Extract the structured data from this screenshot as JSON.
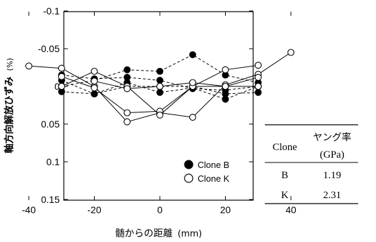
{
  "chart_data": {
    "type": "scatter",
    "xlabel": "髄からの距離",
    "xlabel_unit": "(mm)",
    "ylabel": "軸方向解放ひずみ",
    "ylabel_unit": "(%)",
    "xlim": [
      -45,
      45
    ],
    "ylim": [
      -0.1,
      0.15
    ],
    "y_inverted": true,
    "x_ticks": [
      -40,
      -20,
      0,
      20,
      40
    ],
    "y_ticks": [
      -0.1,
      -0.05,
      0,
      0.05,
      0.1,
      0.15
    ],
    "y_tick_labels": [
      "-0.1",
      "-0.05",
      "0",
      "0.05",
      "0.1",
      "0.15"
    ],
    "x_tick_labels": [
      "-40",
      "-20",
      "0",
      "20",
      "40"
    ],
    "grid": false,
    "legend_position": "bottom-right",
    "series": [
      {
        "name": "Clone B",
        "marker": "filled-circle",
        "style": "dashed",
        "lines": [
          [
            [
              -30,
              -0.008
            ],
            [
              -20,
              0.01
            ],
            [
              -10,
              -0.005
            ],
            [
              0,
              0.008
            ],
            [
              10,
              0.002
            ],
            [
              20,
              0.017
            ],
            [
              30,
              0.0
            ]
          ],
          [
            [
              -30,
              0.0
            ],
            [
              -20,
              -0.008
            ],
            [
              -10,
              -0.022
            ],
            [
              0,
              -0.02
            ],
            [
              10,
              -0.042
            ],
            [
              20,
              -0.015
            ],
            [
              30,
              -0.005
            ]
          ],
          [
            [
              -30,
              0.007
            ],
            [
              -20,
              0.01
            ],
            [
              -10,
              0.0
            ],
            [
              0,
              0.0
            ],
            [
              10,
              0.0
            ],
            [
              20,
              0.01
            ],
            [
              30,
              0.008
            ]
          ],
          [
            [
              -30,
              -0.015
            ],
            [
              -20,
              -0.01
            ],
            [
              -10,
              -0.012
            ],
            [
              0,
              -0.008
            ],
            [
              10,
              0.003
            ],
            [
              20,
              0.005
            ],
            [
              30,
              0.0
            ]
          ]
        ]
      },
      {
        "name": "Clone K",
        "marker": "open-circle",
        "style": "solid",
        "lines": [
          [
            [
              -40,
              -0.027
            ],
            [
              -30,
              -0.024
            ],
            [
              -20,
              0.0
            ],
            [
              -10,
              0.047
            ],
            [
              0,
              0.035
            ],
            [
              10,
              0.041
            ],
            [
              20,
              -0.002
            ],
            [
              30,
              -0.016
            ],
            [
              40,
              -0.045
            ]
          ],
          [
            [
              -30,
              -0.013
            ],
            [
              -20,
              0.002
            ],
            [
              -10,
              0.035
            ],
            [
              0,
              0.033
            ],
            [
              10,
              0.0
            ],
            [
              20,
              -0.022
            ],
            [
              30,
              -0.028
            ]
          ],
          [
            [
              -30,
              0.0
            ],
            [
              -20,
              -0.02
            ],
            [
              -10,
              0.0
            ],
            [
              0,
              0.038
            ],
            [
              10,
              0.0
            ],
            [
              20,
              0.0
            ],
            [
              30,
              -0.012
            ]
          ],
          [
            [
              -20,
              -0.007
            ],
            [
              -10,
              0.003
            ],
            [
              0,
              0.0
            ],
            [
              10,
              -0.005
            ],
            [
              20,
              0.0
            ],
            [
              30,
              0.0
            ]
          ]
        ]
      }
    ],
    "legend": [
      {
        "label": "Clone B",
        "marker": "filled-circle"
      },
      {
        "label": "Clone K",
        "marker": "open-circle"
      }
    ],
    "table": {
      "col1_header": "Clone",
      "col2_header_line1": "ヤング率",
      "col2_header_line2": "(GPa)",
      "rows": [
        {
          "clone": "B",
          "value": "1.19"
        },
        {
          "clone": "K",
          "value": "2.31"
        }
      ]
    }
  }
}
